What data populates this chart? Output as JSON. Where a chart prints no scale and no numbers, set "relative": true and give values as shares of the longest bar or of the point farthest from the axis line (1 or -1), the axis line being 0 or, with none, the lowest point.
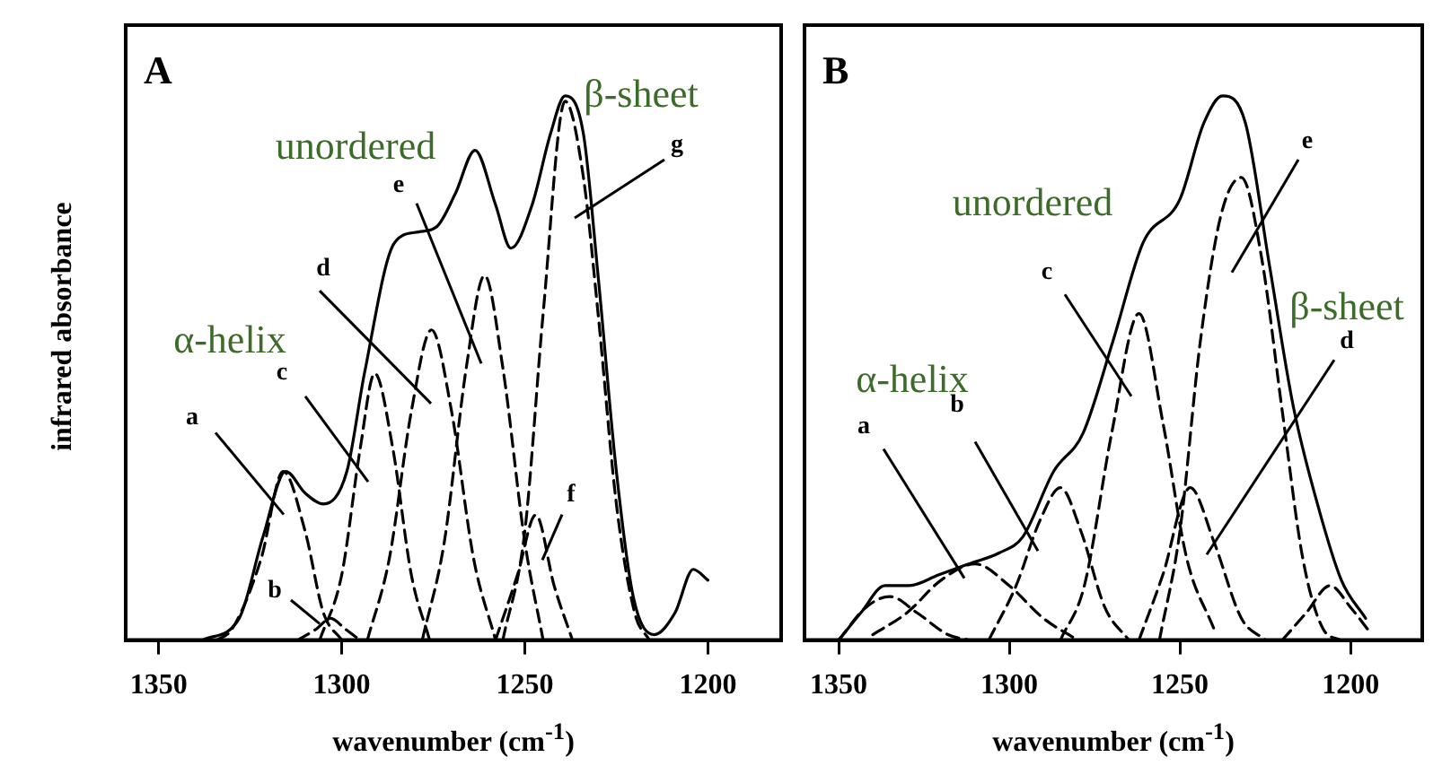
{
  "chart_data": [
    {
      "type": "line",
      "title": "A",
      "xlabel": "wavenumber (cm$^{-1}$)",
      "ylabel": "infrared absorbance",
      "relative": true,
      "xlim": [
        1359,
        1180
      ],
      "xticks": [
        1350,
        1300,
        1250,
        1200
      ],
      "grid": false,
      "legend": false,
      "marker": "none",
      "series": [
        {
          "color": "#000000",
          "line_style": "solid",
          "x": [
            1338,
            1328,
            1321.5,
            1315.3,
            1310,
            1305,
            1298.6,
            1293.8,
            1285.6,
            1279,
            1274,
            1269,
            1263.6,
            1258,
            1253.8,
            1248,
            1243,
            1239,
            1234,
            1230,
            1225,
            1220.4,
            1214.7,
            1209,
            1204,
            1200
          ],
          "values": [
            0,
            0.04,
            0.19,
            0.31,
            0.27,
            0.25,
            0.31,
            0.49,
            0.73,
            0.75,
            0.76,
            0.82,
            0.9,
            0.8,
            0.72,
            0.8,
            0.93,
            1,
            0.93,
            0.67,
            0.31,
            0.08,
            0.01,
            0.05,
            0.13,
            0.11
          ]
        },
        {
          "color": "#000000",
          "line_style": "dashed",
          "x": [
            1334,
            1330,
            1322,
            1316,
            1310,
            1305,
            1300
          ],
          "values": [
            0,
            0.02,
            0.15,
            0.31,
            0.2,
            0.05,
            0
          ]
        },
        {
          "color": "#000000",
          "line_style": "dashed",
          "x": [
            1312,
            1307,
            1303,
            1299,
            1295
          ],
          "values": [
            0,
            0.02,
            0.04,
            0.02,
            0
          ]
        },
        {
          "color": "#000000",
          "line_style": "dashed",
          "x": [
            1306,
            1300,
            1295,
            1291,
            1286,
            1281,
            1276
          ],
          "values": [
            0,
            0.12,
            0.35,
            0.49,
            0.35,
            0.12,
            0
          ]
        },
        {
          "color": "#000000",
          "line_style": "dashed",
          "x": [
            1293,
            1287,
            1281,
            1275.5,
            1270,
            1264,
            1258
          ],
          "values": [
            0,
            0.15,
            0.42,
            0.57,
            0.42,
            0.15,
            0
          ]
        },
        {
          "color": "#000000",
          "line_style": "dashed",
          "x": [
            1278,
            1272,
            1266,
            1261,
            1256,
            1250,
            1245
          ],
          "values": [
            0,
            0.18,
            0.5,
            0.67,
            0.5,
            0.18,
            0
          ]
        },
        {
          "color": "#000000",
          "line_style": "dashed",
          "x": [
            1258,
            1252,
            1247,
            1242,
            1237
          ],
          "values": [
            0,
            0.12,
            0.23,
            0.1,
            0
          ]
        },
        {
          "color": "#000000",
          "line_style": "dashed",
          "x": [
            1256,
            1250,
            1245,
            1239,
            1234,
            1230,
            1225,
            1220,
            1216
          ],
          "values": [
            0,
            0.2,
            0.6,
            0.99,
            0.85,
            0.6,
            0.25,
            0.05,
            0
          ]
        }
      ],
      "annotations": [
        "a",
        "b",
        "c",
        "d",
        "e",
        "f",
        "g",
        "α-helix",
        "unordered",
        "β-sheet"
      ]
    },
    {
      "type": "line",
      "title": "B",
      "xlabel": "wavenumber (cm$^{-1}$)",
      "relative": true,
      "xlim": [
        1360,
        1179
      ],
      "xticks": [
        1350,
        1300,
        1250,
        1200
      ],
      "grid": false,
      "legend": false,
      "marker": "none",
      "series": [
        {
          "color": "#000000",
          "line_style": "solid",
          "x": [
            1350,
            1343.5,
            1336.4,
            1329.4,
            1320.6,
            1311.8,
            1303,
            1296,
            1287,
            1278.4,
            1269.6,
            1260.8,
            1250,
            1243,
            1237.5,
            1230.8,
            1223.8,
            1216.8,
            1209.7,
            1202.7,
            1195.6
          ],
          "values": [
            0,
            0.05,
            0.1,
            0.1,
            0.12,
            0.14,
            0.16,
            0.19,
            0.31,
            0.38,
            0.55,
            0.73,
            0.81,
            0.95,
            1,
            0.95,
            0.69,
            0.43,
            0.25,
            0.11,
            0.04
          ]
        },
        {
          "color": "#000000",
          "line_style": "dashed",
          "x": [
            1350,
            1342,
            1335,
            1327,
            1318,
            1312
          ],
          "values": [
            0,
            0.06,
            0.08,
            0.05,
            0.01,
            0
          ]
        },
        {
          "color": "#000000",
          "line_style": "dashed",
          "x": [
            1340,
            1330,
            1320,
            1310,
            1300,
            1290,
            1280
          ],
          "values": [
            0.01,
            0.05,
            0.11,
            0.14,
            0.1,
            0.04,
            0
          ]
        },
        {
          "color": "#000000",
          "line_style": "dashed",
          "x": [
            1306,
            1298,
            1291,
            1285,
            1279,
            1272,
            1265
          ],
          "values": [
            0,
            0.1,
            0.22,
            0.28,
            0.2,
            0.06,
            0
          ]
        },
        {
          "color": "#000000",
          "line_style": "dashed",
          "x": [
            1285,
            1278,
            1270,
            1262,
            1255,
            1248,
            1240
          ],
          "values": [
            0,
            0.1,
            0.38,
            0.6,
            0.4,
            0.15,
            0.02
          ]
        },
        {
          "color": "#000000",
          "line_style": "dashed",
          "x": [
            1262,
            1255,
            1247,
            1240,
            1232,
            1225
          ],
          "values": [
            0,
            0.12,
            0.28,
            0.18,
            0.04,
            0
          ]
        },
        {
          "color": "#000000",
          "line_style": "dashed",
          "x": [
            1256,
            1250,
            1244,
            1238,
            1232,
            1226,
            1220,
            1214,
            1208,
            1203
          ],
          "values": [
            0,
            0.2,
            0.55,
            0.78,
            0.85,
            0.7,
            0.42,
            0.15,
            0.02,
            0
          ]
        },
        {
          "color": "#000000",
          "line_style": "dashed",
          "x": [
            1220,
            1213,
            1206,
            1200,
            1195
          ],
          "values": [
            0,
            0.05,
            0.1,
            0.06,
            0.02
          ]
        }
      ],
      "annotations": [
        "a",
        "b",
        "c",
        "d",
        "e",
        "α-helix",
        "unordered",
        "β-sheet"
      ]
    }
  ]
}
